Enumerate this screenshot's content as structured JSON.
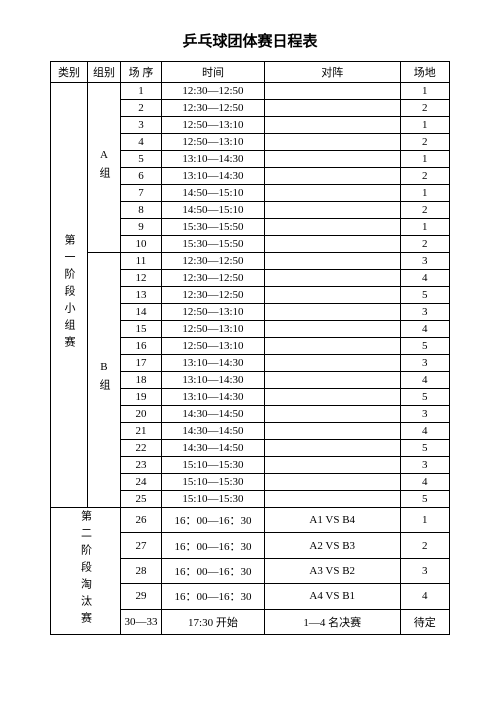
{
  "title": "乒乓球团体赛日程表",
  "headers": {
    "category": "类别",
    "group": "组别",
    "seq": "场 序",
    "time": "时间",
    "match": "对阵",
    "venue": "场地"
  },
  "stage1_label": "第一阶段小组赛",
  "stage2_label": "第二阶段淘汰赛",
  "groupA_label": "A组",
  "groupB_label": "B组",
  "rowsA": [
    {
      "seq": "1",
      "time": "12:30—12:50",
      "match": "",
      "venue": "1"
    },
    {
      "seq": "2",
      "time": "12:30—12:50",
      "match": "",
      "venue": "2"
    },
    {
      "seq": "3",
      "time": "12:50—13:10",
      "match": "",
      "venue": "1"
    },
    {
      "seq": "4",
      "time": "12:50—13:10",
      "match": "",
      "venue": "2"
    },
    {
      "seq": "5",
      "time": "13:10—14:30",
      "match": "",
      "venue": "1"
    },
    {
      "seq": "6",
      "time": "13:10—14:30",
      "match": "",
      "venue": "2"
    },
    {
      "seq": "7",
      "time": "14:50—15:10",
      "match": "",
      "venue": "1"
    },
    {
      "seq": "8",
      "time": "14:50—15:10",
      "match": "",
      "venue": "2"
    },
    {
      "seq": "9",
      "time": "15:30—15:50",
      "match": "",
      "venue": "1"
    },
    {
      "seq": "10",
      "time": "15:30—15:50",
      "match": "",
      "venue": "2"
    }
  ],
  "rowsB": [
    {
      "seq": "11",
      "time": "12:30—12:50",
      "match": "",
      "venue": "3"
    },
    {
      "seq": "12",
      "time": "12:30—12:50",
      "match": "",
      "venue": "4"
    },
    {
      "seq": "13",
      "time": "12:30—12:50",
      "match": "",
      "venue": "5"
    },
    {
      "seq": "14",
      "time": "12:50—13:10",
      "match": "",
      "venue": "3"
    },
    {
      "seq": "15",
      "time": "12:50—13:10",
      "match": "",
      "venue": "4"
    },
    {
      "seq": "16",
      "time": "12:50—13:10",
      "match": "",
      "venue": "5"
    },
    {
      "seq": "17",
      "time": "13:10—14:30",
      "match": "",
      "venue": "3"
    },
    {
      "seq": "18",
      "time": "13:10—14:30",
      "match": "",
      "venue": "4"
    },
    {
      "seq": "19",
      "time": "13:10—14:30",
      "match": "",
      "venue": "5"
    },
    {
      "seq": "20",
      "time": "14:30—14:50",
      "match": "",
      "venue": "3"
    },
    {
      "seq": "21",
      "time": "14:30—14:50",
      "match": "",
      "venue": "4"
    },
    {
      "seq": "22",
      "time": "14:30—14:50",
      "match": "",
      "venue": "5"
    },
    {
      "seq": "23",
      "time": "15:10—15:30",
      "match": "",
      "venue": "3"
    },
    {
      "seq": "24",
      "time": "15:10—15:30",
      "match": "",
      "venue": "4"
    },
    {
      "seq": "25",
      "time": "15:10—15:30",
      "match": "",
      "venue": "5"
    }
  ],
  "rows2": [
    {
      "seq": "26",
      "time": "16：00—16：30",
      "match": "A1 VS B4",
      "venue": "1"
    },
    {
      "seq": "27",
      "time": "16：00—16：30",
      "match": "A2 VS B3",
      "venue": "2"
    },
    {
      "seq": "28",
      "time": "16：00—16：30",
      "match": "A3 VS B2",
      "venue": "3"
    },
    {
      "seq": "29",
      "time": "16：00—16：30",
      "match": "A4 VS B1",
      "venue": "4"
    },
    {
      "seq": "30—33",
      "time": "17:30 开始",
      "match": "1—4 名决赛",
      "venue": "待定"
    }
  ]
}
